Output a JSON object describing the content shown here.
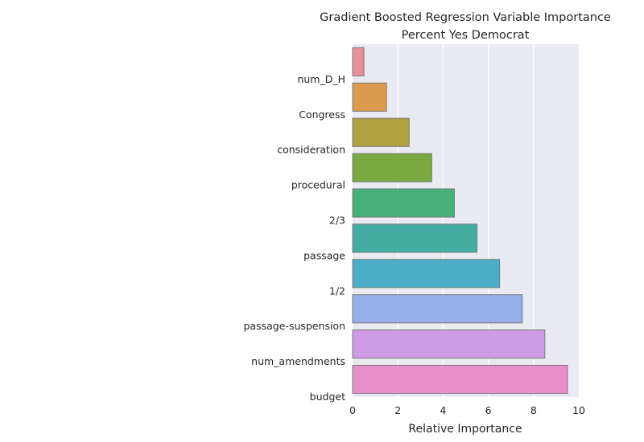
{
  "chart_data": {
    "type": "bar",
    "orientation": "horizontal",
    "title_lines": [
      "Gradient Boosted Regression Variable Importance",
      "Percent Yes Democrat"
    ],
    "xlabel": "Relative Importance",
    "ylabel": "",
    "xlim": [
      0,
      10
    ],
    "xticks": [
      "0",
      "2",
      "4",
      "6",
      "8",
      "10"
    ],
    "grid": true,
    "categories": [
      "num_D_H",
      "Congress",
      "consideration",
      "procedural",
      "2/3",
      "passage",
      "1/2",
      "passage-suspension",
      "num_amendments",
      "budget"
    ],
    "values": [
      0.5,
      1.5,
      2.5,
      3.5,
      4.5,
      5.5,
      6.5,
      7.5,
      8.5,
      9.5
    ],
    "colors": [
      "#e8919e",
      "#dc9a4f",
      "#b0a142",
      "#7aa93f",
      "#47b07a",
      "#45aca4",
      "#4aaec6",
      "#93aee8",
      "#ce9ae6",
      "#e88ec9"
    ]
  }
}
